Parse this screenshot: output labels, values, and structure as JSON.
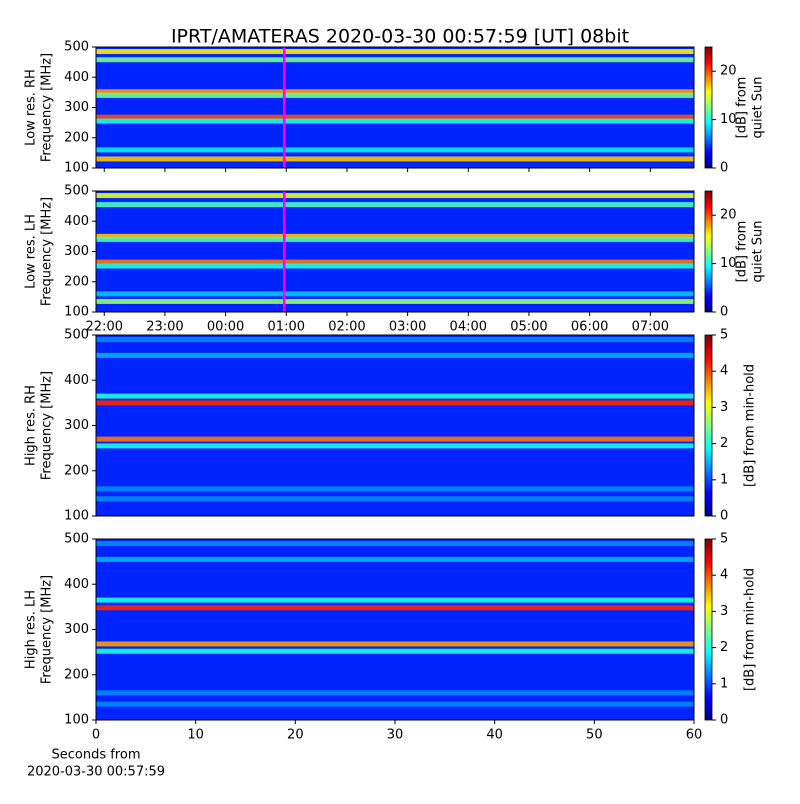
{
  "chart_data": [
    {
      "type": "heatmap",
      "title": "IPRT/AMATERAS 2020-03-30 00:57:59 [UT]   08bit",
      "ylabel": [
        "Low res. RH",
        "Frequency [MHz]"
      ],
      "ylim": [
        100,
        500
      ],
      "yticks": [
        100,
        200,
        300,
        400,
        500
      ],
      "xlim": [
        21.864,
        31.72
      ],
      "clim": [
        0,
        25
      ],
      "cticks": [
        0,
        10,
        20
      ],
      "clabel": [
        "[dB] from",
        "quiet Sun"
      ],
      "background": 4,
      "marker_x": 24.966,
      "marker_color": "#ff00ff",
      "bands": [
        {
          "freq": 485,
          "value": 16
        },
        {
          "freq": 458,
          "value": 12
        },
        {
          "freq": 352,
          "value": 18
        },
        {
          "freq": 340,
          "value": 12
        },
        {
          "freq": 268,
          "value": 20
        },
        {
          "freq": 255,
          "value": 10
        },
        {
          "freq": 160,
          "value": 9
        },
        {
          "freq": 130,
          "value": 17
        }
      ]
    },
    {
      "type": "heatmap",
      "ylabel": [
        "Low res. LH",
        "Frequency [MHz]"
      ],
      "ylim": [
        100,
        500
      ],
      "yticks": [
        100,
        200,
        300,
        400,
        500
      ],
      "xlim": [
        21.864,
        31.72
      ],
      "xticks": [
        {
          "value": 22,
          "label": "22:00"
        },
        {
          "value": 23,
          "label": "23:00"
        },
        {
          "value": 24,
          "label": "00:00"
        },
        {
          "value": 25,
          "label": "01:00"
        },
        {
          "value": 26,
          "label": "02:00"
        },
        {
          "value": 27,
          "label": "03:00"
        },
        {
          "value": 28,
          "label": "04:00"
        },
        {
          "value": 29,
          "label": "05:00"
        },
        {
          "value": 30,
          "label": "06:00"
        },
        {
          "value": 31,
          "label": "07:00"
        }
      ],
      "clim": [
        0,
        25
      ],
      "cticks": [
        0,
        10,
        20
      ],
      "clabel": [
        "[dB] from",
        "quiet Sun"
      ],
      "background": 4,
      "marker_x": 24.966,
      "marker_color": "#ff00ff",
      "bands": [
        {
          "freq": 485,
          "value": 15
        },
        {
          "freq": 455,
          "value": 11
        },
        {
          "freq": 350,
          "value": 17
        },
        {
          "freq": 340,
          "value": 11
        },
        {
          "freq": 265,
          "value": 19
        },
        {
          "freq": 252,
          "value": 10
        },
        {
          "freq": 160,
          "value": 8
        },
        {
          "freq": 135,
          "value": 13
        }
      ]
    },
    {
      "type": "heatmap",
      "ylabel": [
        "High res. RH",
        "Frequency [MHz]"
      ],
      "ylim": [
        100,
        500
      ],
      "yticks": [
        100,
        200,
        300,
        400,
        500
      ],
      "xlim": [
        0,
        60
      ],
      "clim": [
        0,
        5
      ],
      "cticks": [
        0,
        1,
        2,
        3,
        4,
        5
      ],
      "clabel": [
        "[dB] from min-hold"
      ],
      "background": 0.8,
      "bands": [
        {
          "freq": 490,
          "value": 1.3
        },
        {
          "freq": 455,
          "value": 1.5
        },
        {
          "freq": 365,
          "value": 2
        },
        {
          "freq": 350,
          "value": 4.2
        },
        {
          "freq": 270,
          "value": 3.8
        },
        {
          "freq": 255,
          "value": 2
        },
        {
          "freq": 160,
          "value": 1.3
        },
        {
          "freq": 138,
          "value": 1.3
        }
      ]
    },
    {
      "type": "heatmap",
      "ylabel": [
        "High res. LH",
        "Frequency [MHz]"
      ],
      "ylim": [
        100,
        500
      ],
      "yticks": [
        100,
        200,
        300,
        400,
        500
      ],
      "xlim": [
        0,
        60
      ],
      "xticks": [
        0,
        10,
        20,
        30,
        40,
        50,
        60
      ],
      "xlabel": [
        "Seconds from",
        "2020-03-30 00:57:59"
      ],
      "clim": [
        0,
        5
      ],
      "cticks": [
        0,
        1,
        2,
        3,
        4,
        5
      ],
      "clabel": [
        "[dB] from min-hold"
      ],
      "background": 0.8,
      "bands": [
        {
          "freq": 490,
          "value": 1.3
        },
        {
          "freq": 455,
          "value": 1.5
        },
        {
          "freq": 365,
          "value": 2
        },
        {
          "freq": 348,
          "value": 4.2
        },
        {
          "freq": 268,
          "value": 3.6
        },
        {
          "freq": 252,
          "value": 2
        },
        {
          "freq": 160,
          "value": 1.3
        },
        {
          "freq": 135,
          "value": 1.3
        }
      ]
    }
  ]
}
